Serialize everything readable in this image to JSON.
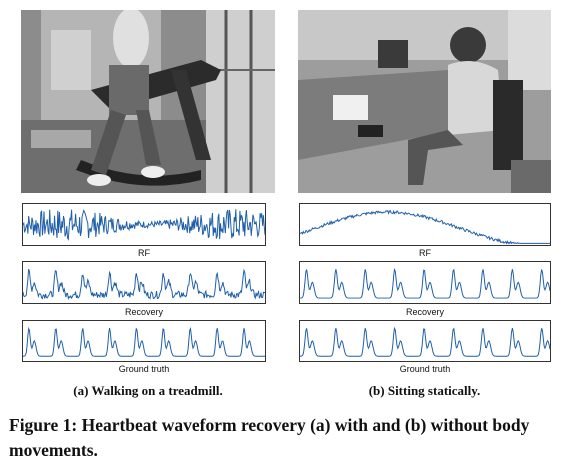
{
  "panels": [
    {
      "id": "a",
      "caption": "(a) Walking on a treadmill.",
      "waves": [
        {
          "label": "RF",
          "kind": "noisy"
        },
        {
          "label": "Recovery",
          "kind": "recovery"
        },
        {
          "label": "Ground truth",
          "kind": "clean"
        }
      ]
    },
    {
      "id": "b",
      "caption": "(b) Sitting statically.",
      "waves": [
        {
          "label": "RF",
          "kind": "drift"
        },
        {
          "label": "Recovery",
          "kind": "clean"
        },
        {
          "label": "Ground truth",
          "kind": "clean"
        }
      ]
    }
  ],
  "line_color": "#1f5fa8",
  "figure_caption": "Figure 1: Heartbeat waveform recovery (a) with and (b) without body movements."
}
